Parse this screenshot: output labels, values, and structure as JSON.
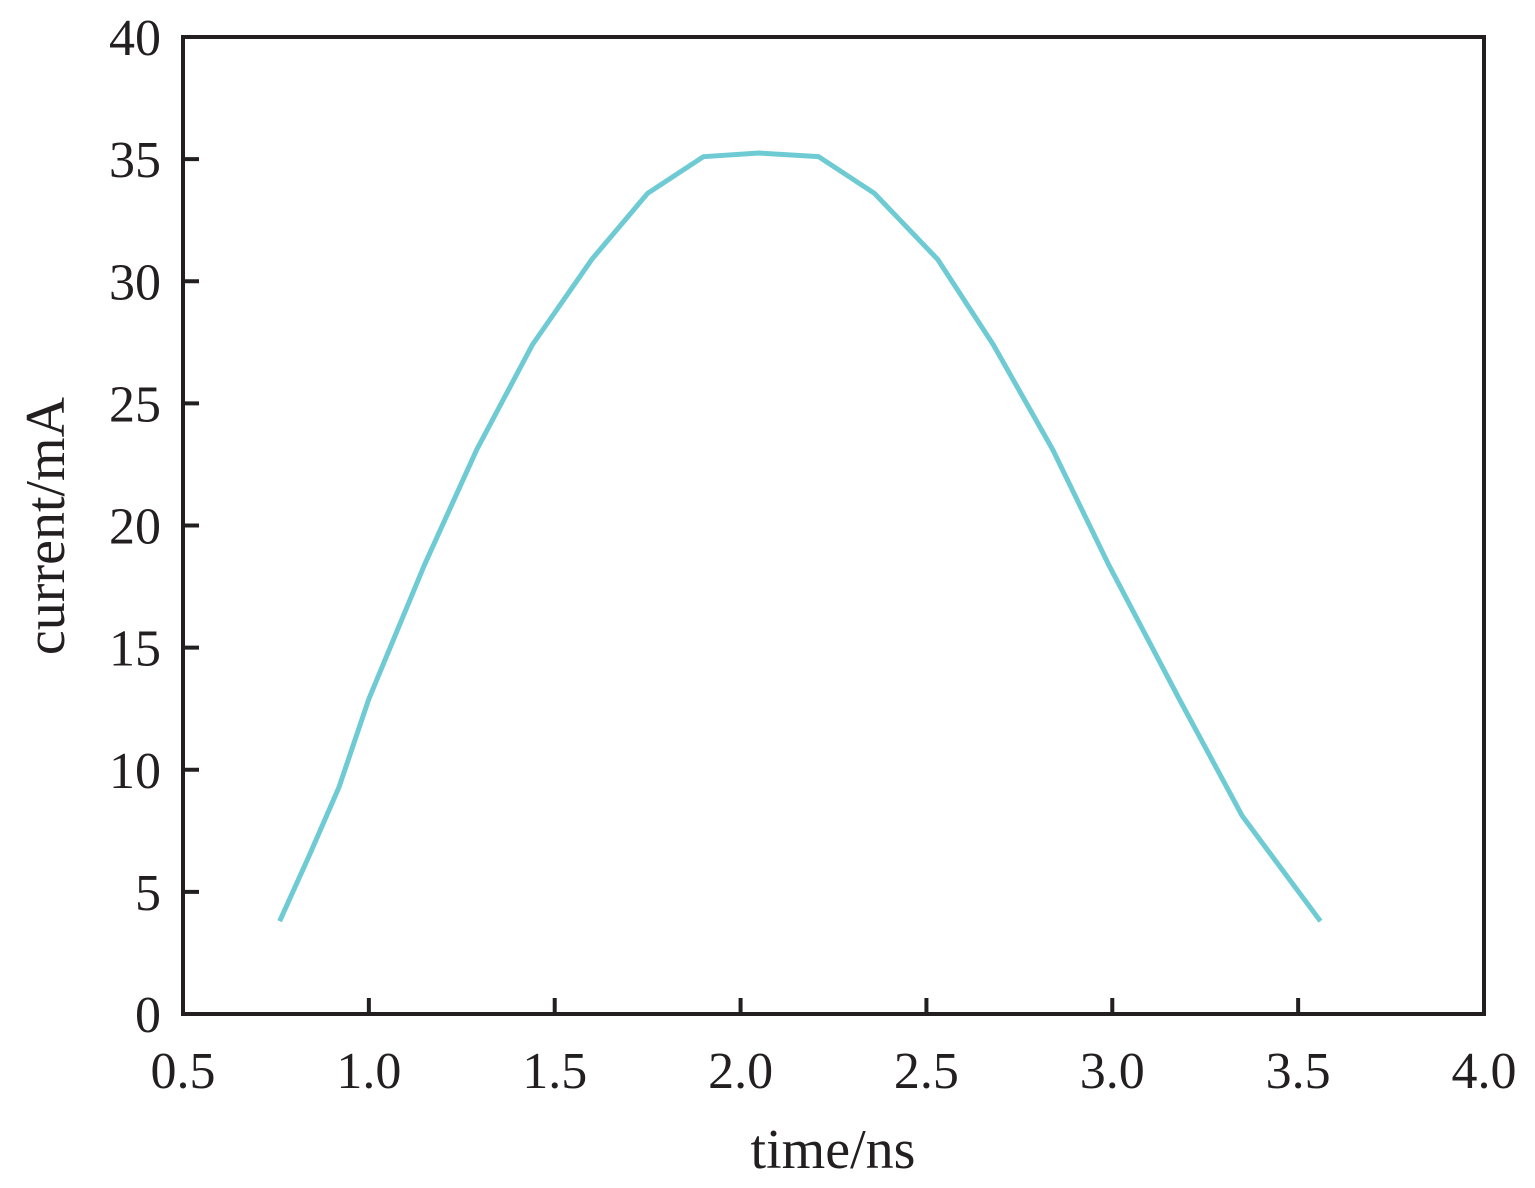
{
  "chart_data": {
    "type": "line",
    "title": "",
    "xlabel": "time/ns",
    "ylabel": "current/mA",
    "xlim": [
      0.5,
      4.0
    ],
    "ylim": [
      0,
      40
    ],
    "x_ticks": [
      "0.5",
      "1.0",
      "1.5",
      "2.0",
      "2.5",
      "3.0",
      "3.5",
      "4.0"
    ],
    "y_ticks": [
      "0",
      "5",
      "10",
      "15",
      "20",
      "25",
      "30",
      "35",
      "40"
    ],
    "grid": false,
    "legend": "none",
    "series": [
      {
        "color": "#6ecad3",
        "points": [
          [
            0.76,
            3.8
          ],
          [
            0.84,
            6.5
          ],
          [
            0.92,
            9.3
          ],
          [
            1.0,
            12.9
          ],
          [
            1.15,
            18.4
          ],
          [
            1.29,
            23.1
          ],
          [
            1.44,
            27.4
          ],
          [
            1.6,
            30.9
          ],
          [
            1.75,
            33.6
          ],
          [
            1.9,
            35.1
          ],
          [
            2.05,
            35.25
          ],
          [
            2.21,
            35.1
          ],
          [
            2.36,
            33.6
          ],
          [
            2.53,
            30.9
          ],
          [
            2.68,
            27.4
          ],
          [
            2.84,
            23.1
          ],
          [
            2.99,
            18.4
          ],
          [
            3.18,
            12.9
          ],
          [
            3.35,
            8.1
          ],
          [
            3.56,
            3.8
          ]
        ]
      }
    ]
  }
}
